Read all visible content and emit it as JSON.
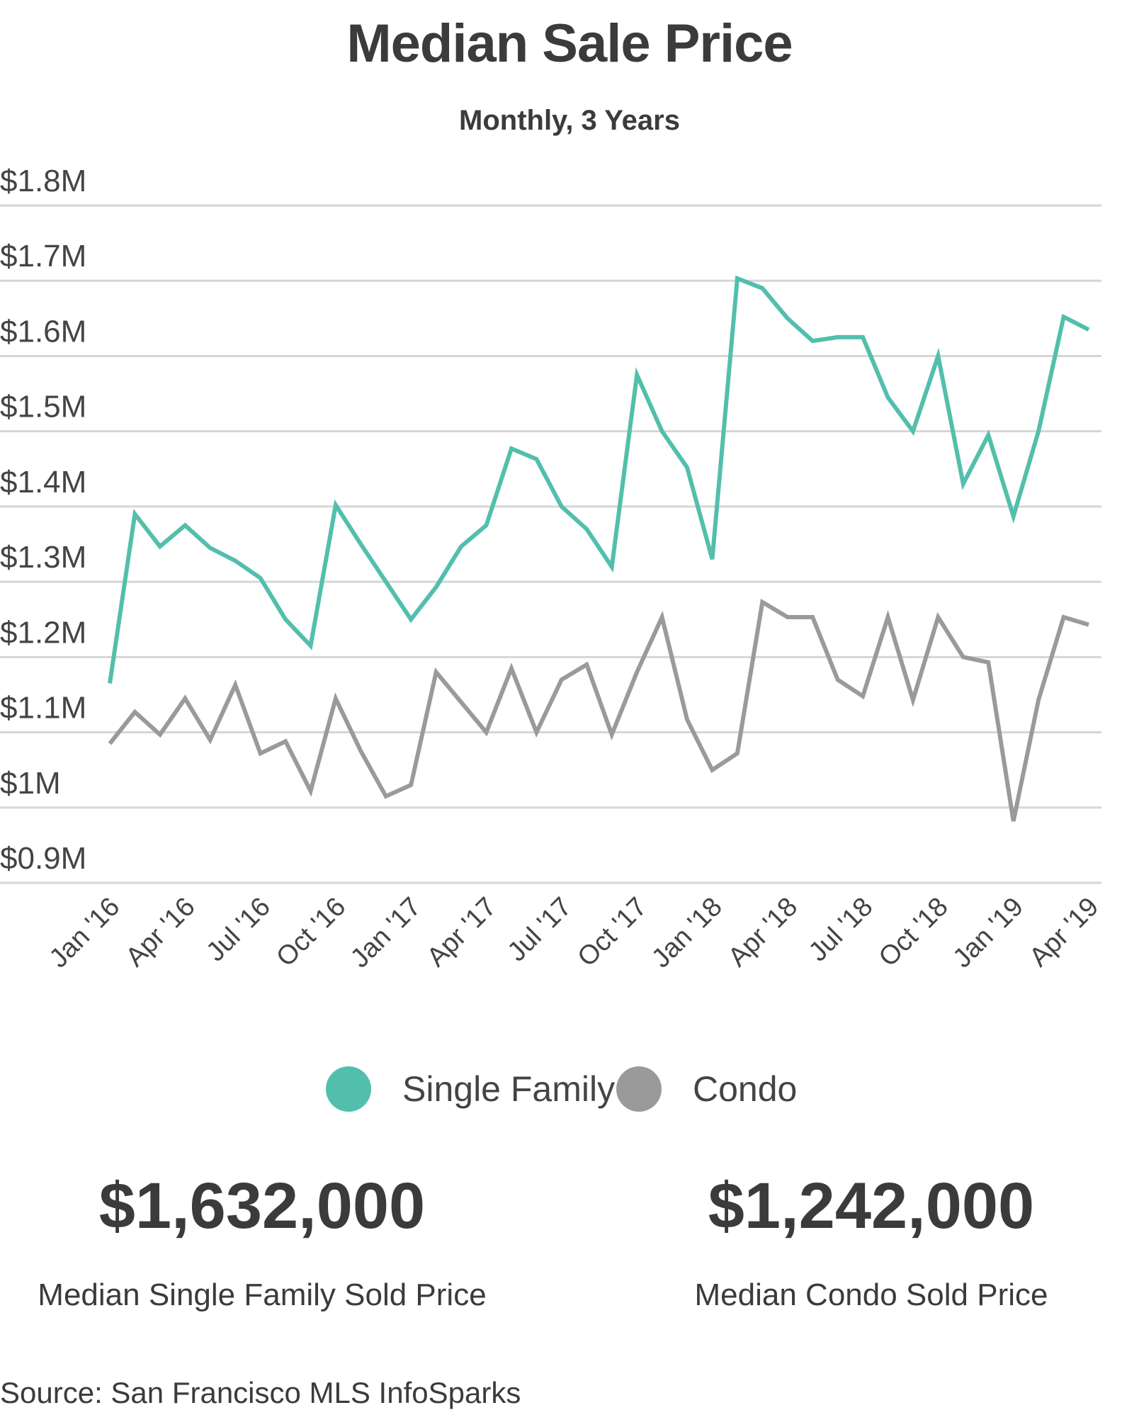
{
  "chart_data": {
    "type": "line",
    "title": "Median Sale Price",
    "subtitle": "Monthly, 3 Years",
    "xlabel": "",
    "ylabel": "",
    "ylim": [
      0.9,
      1.8
    ],
    "yticks": [
      "$1.8M",
      "$1.7M",
      "$1.6M",
      "$1.5M",
      "$1.4M",
      "$1.3M",
      "$1.2M",
      "$1.1M",
      "$1M",
      "$0.9M"
    ],
    "xticks": [
      "Jan '16",
      "Apr '16",
      "Jul '16",
      "Oct '16",
      "Jan '17",
      "Apr '17",
      "Jul '17",
      "Oct '17",
      "Jan '18",
      "Apr '18",
      "Jul '18",
      "Oct '18",
      "Jan '19",
      "Apr '19"
    ],
    "x": [
      "Jan '16",
      "Feb '16",
      "Mar '16",
      "Apr '16",
      "May '16",
      "Jun '16",
      "Jul '16",
      "Aug '16",
      "Sep '16",
      "Oct '16",
      "Nov '16",
      "Dec '16",
      "Jan '17",
      "Feb '17",
      "Mar '17",
      "Apr '17",
      "May '17",
      "Jun '17",
      "Jul '17",
      "Aug '17",
      "Sep '17",
      "Oct '17",
      "Nov '17",
      "Dec '17",
      "Jan '18",
      "Feb '18",
      "Mar '18",
      "Apr '18",
      "May '18",
      "Jun '18",
      "Jul '18",
      "Aug '18",
      "Sep '18",
      "Oct '18",
      "Nov '18",
      "Dec '18",
      "Jan '19",
      "Feb '19",
      "Mar '19",
      "Apr '19"
    ],
    "series": [
      {
        "name": "Single Family",
        "color": "#52bfac",
        "values": [
          1.165,
          1.39,
          1.347,
          1.375,
          1.345,
          1.328,
          1.305,
          1.25,
          1.215,
          1.402,
          1.35,
          1.3,
          1.25,
          1.293,
          1.347,
          1.375,
          1.477,
          1.463,
          1.4,
          1.37,
          1.32,
          1.575,
          1.5,
          1.452,
          1.33,
          1.703,
          1.69,
          1.65,
          1.62,
          1.625,
          1.625,
          1.545,
          1.5,
          1.6,
          1.43,
          1.495,
          1.387,
          1.5,
          1.652,
          1.635
        ]
      },
      {
        "name": "Condo",
        "color": "#9a9a9a",
        "values": [
          1.085,
          1.127,
          1.097,
          1.145,
          1.09,
          1.163,
          1.072,
          1.088,
          1.022,
          1.145,
          1.075,
          1.015,
          1.03,
          1.18,
          1.14,
          1.1,
          1.185,
          1.1,
          1.17,
          1.19,
          1.097,
          1.18,
          1.253,
          1.117,
          1.05,
          1.072,
          1.273,
          1.253,
          1.253,
          1.17,
          1.148,
          1.253,
          1.143,
          1.253,
          1.2,
          1.193,
          0.982,
          1.143,
          1.253,
          1.243
        ]
      }
    ],
    "grid": true,
    "legend": "bottom-center"
  },
  "stats": {
    "single_family_value": "$1,632,000",
    "single_family_label": "Median Single Family Sold Price",
    "condo_value": "$1,242,000",
    "condo_label": "Median Condo Sold Price"
  },
  "source": "Source:  San Francisco MLS InfoSparks"
}
